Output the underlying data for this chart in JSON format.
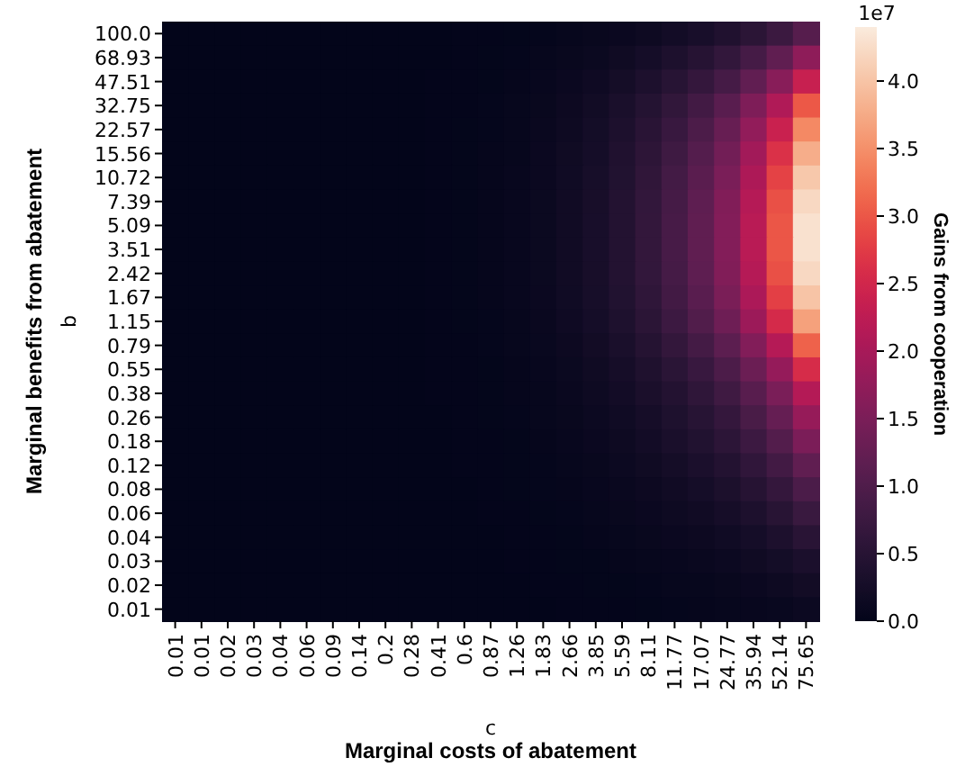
{
  "chart_data": {
    "type": "heatmap",
    "xlabel": "c",
    "ylabel": "b",
    "clabel": "Gains from cooperation",
    "annotations": [
      "Marginal costs of abatement",
      "Marginal benefits from abatement",
      "1e7"
    ],
    "categories": [
      "0.01",
      "0.01",
      "0.02",
      "0.03",
      "0.04",
      "0.06",
      "0.09",
      "0.14",
      "0.2",
      "0.28",
      "0.41",
      "0.6",
      "0.87",
      "1.26",
      "1.83",
      "2.66",
      "3.85",
      "5.59",
      "8.11",
      "11.77",
      "17.07",
      "24.77",
      "35.94",
      "52.14",
      "75.65"
    ],
    "y_categories": [
      "100.0",
      "68.93",
      "47.51",
      "32.75",
      "22.57",
      "15.56",
      "10.72",
      "7.39",
      "5.09",
      "3.51",
      "2.42",
      "1.67",
      "1.15",
      "0.79",
      "0.55",
      "0.38",
      "0.26",
      "0.18",
      "0.12",
      "0.08",
      "0.06",
      "0.04",
      "0.03",
      "0.02",
      "0.01"
    ],
    "clim": [
      0,
      4.4
    ],
    "cticks": [
      {
        "value": 0,
        "label": "0.0"
      },
      0.5,
      {
        "value": 1,
        "label": "1.0"
      },
      1.5,
      {
        "value": 2,
        "label": "2.0"
      },
      2.5,
      {
        "value": 3,
        "label": "3.0"
      },
      3.5,
      {
        "value": 4,
        "label": "4.0"
      }
    ],
    "cells": [
      [
        0,
        0,
        0,
        0,
        0,
        0,
        0,
        0,
        0,
        0,
        0,
        0.01,
        0.01,
        0.02,
        0.03,
        0.05,
        0.08,
        0.11,
        0.16,
        0.23,
        0.3,
        0.4,
        0.55,
        0.75,
        1.08
      ],
      [
        0,
        0,
        0,
        0,
        0,
        0,
        0,
        0,
        0,
        0,
        0,
        0.01,
        0.02,
        0.03,
        0.05,
        0.08,
        0.12,
        0.18,
        0.26,
        0.36,
        0.48,
        0.64,
        0.88,
        1.2,
        1.72
      ],
      [
        0,
        0,
        0,
        0,
        0,
        0,
        0,
        0,
        0,
        0,
        0.01,
        0.01,
        0.02,
        0.04,
        0.07,
        0.11,
        0.17,
        0.25,
        0.36,
        0.5,
        0.66,
        0.88,
        1.21,
        1.65,
        2.37
      ],
      [
        0,
        0,
        0,
        0,
        0,
        0,
        0,
        0,
        0,
        0,
        0.01,
        0.01,
        0.03,
        0.05,
        0.08,
        0.14,
        0.21,
        0.32,
        0.46,
        0.63,
        0.84,
        1.12,
        1.54,
        2.1,
        3.01
      ],
      [
        0,
        0,
        0,
        0,
        0,
        0,
        0,
        0,
        0,
        0,
        0.01,
        0.02,
        0.03,
        0.06,
        0.1,
        0.16,
        0.24,
        0.36,
        0.52,
        0.72,
        0.96,
        1.28,
        1.76,
        2.4,
        3.44
      ],
      [
        0,
        0,
        0,
        0,
        0,
        0,
        0,
        0,
        0,
        0,
        0.01,
        0.02,
        0.04,
        0.06,
        0.11,
        0.18,
        0.26,
        0.4,
        0.57,
        0.79,
        1.06,
        1.41,
        1.94,
        2.64,
        3.78
      ],
      [
        0,
        0,
        0,
        0,
        0,
        0,
        0,
        0,
        0,
        0,
        0.01,
        0.02,
        0.04,
        0.07,
        0.11,
        0.19,
        0.28,
        0.42,
        0.61,
        0.85,
        1.13,
        1.5,
        2.07,
        2.82,
        4.04
      ],
      [
        0,
        0,
        0,
        0,
        0,
        0,
        0,
        0,
        0,
        0,
        0.01,
        0.02,
        0.04,
        0.07,
        0.12,
        0.2,
        0.29,
        0.44,
        0.64,
        0.88,
        1.18,
        1.57,
        2.16,
        2.94,
        4.21
      ],
      [
        0,
        0,
        0,
        0,
        0,
        0,
        0,
        0,
        0,
        0,
        0.01,
        0.02,
        0.04,
        0.07,
        0.12,
        0.2,
        0.3,
        0.45,
        0.65,
        0.9,
        1.2,
        1.6,
        2.2,
        3.0,
        4.3
      ],
      [
        0,
        0,
        0,
        0,
        0,
        0,
        0,
        0,
        0,
        0,
        0.01,
        0.02,
        0.04,
        0.07,
        0.12,
        0.2,
        0.3,
        0.45,
        0.65,
        0.9,
        1.2,
        1.6,
        2.2,
        3.0,
        4.3
      ],
      [
        0,
        0,
        0,
        0,
        0,
        0,
        0,
        0,
        0,
        0,
        0.01,
        0.02,
        0.04,
        0.07,
        0.12,
        0.2,
        0.29,
        0.44,
        0.64,
        0.88,
        1.18,
        1.57,
        2.16,
        2.94,
        4.21
      ],
      [
        0,
        0,
        0,
        0,
        0,
        0,
        0,
        0,
        0,
        0,
        0.01,
        0.02,
        0.04,
        0.07,
        0.11,
        0.19,
        0.28,
        0.42,
        0.6,
        0.84,
        1.12,
        1.49,
        2.05,
        2.79,
        4.0
      ],
      [
        0,
        0,
        0,
        0,
        0,
        0,
        0,
        0,
        0,
        0,
        0.01,
        0.02,
        0.03,
        0.06,
        0.1,
        0.17,
        0.26,
        0.38,
        0.55,
        0.77,
        1.02,
        1.36,
        1.87,
        2.55,
        3.66
      ],
      [
        0,
        0,
        0,
        0,
        0,
        0,
        0,
        0,
        0,
        0,
        0.01,
        0.01,
        0.03,
        0.05,
        0.09,
        0.14,
        0.22,
        0.32,
        0.47,
        0.65,
        0.86,
        1.15,
        1.58,
        2.16,
        3.1
      ],
      [
        0,
        0,
        0,
        0,
        0,
        0,
        0,
        0,
        0,
        0,
        0.01,
        0.01,
        0.02,
        0.04,
        0.07,
        0.12,
        0.18,
        0.27,
        0.39,
        0.54,
        0.72,
        0.96,
        1.32,
        1.8,
        2.58
      ],
      [
        0,
        0,
        0,
        0,
        0,
        0,
        0,
        0,
        0,
        0,
        0.01,
        0.01,
        0.02,
        0.04,
        0.06,
        0.1,
        0.15,
        0.23,
        0.33,
        0.45,
        0.6,
        0.8,
        1.1,
        1.5,
        2.15
      ],
      [
        0,
        0,
        0,
        0,
        0,
        0,
        0,
        0,
        0,
        0,
        0,
        0.01,
        0.02,
        0.03,
        0.05,
        0.08,
        0.13,
        0.19,
        0.27,
        0.38,
        0.5,
        0.67,
        0.92,
        1.26,
        1.81
      ],
      [
        0,
        0,
        0,
        0,
        0,
        0,
        0,
        0,
        0,
        0,
        0,
        0.01,
        0.01,
        0.02,
        0.04,
        0.07,
        0.11,
        0.16,
        0.23,
        0.32,
        0.42,
        0.56,
        0.77,
        1.05,
        1.51
      ],
      [
        0,
        0,
        0,
        0,
        0,
        0,
        0,
        0,
        0,
        0,
        0,
        0.01,
        0.01,
        0.02,
        0.03,
        0.06,
        0.08,
        0.13,
        0.18,
        0.25,
        0.34,
        0.45,
        0.62,
        0.84,
        1.2
      ],
      [
        0,
        0,
        0,
        0,
        0,
        0,
        0,
        0,
        0,
        0,
        0,
        0,
        0.01,
        0.02,
        0.03,
        0.04,
        0.07,
        0.1,
        0.14,
        0.2,
        0.26,
        0.35,
        0.48,
        0.66,
        0.95
      ],
      [
        0,
        0,
        0,
        0,
        0,
        0,
        0,
        0,
        0,
        0,
        0,
        0,
        0.01,
        0.01,
        0.02,
        0.03,
        0.05,
        0.08,
        0.11,
        0.15,
        0.2,
        0.27,
        0.37,
        0.51,
        0.73
      ],
      [
        0,
        0,
        0,
        0,
        0,
        0,
        0,
        0,
        0,
        0,
        0,
        0,
        0,
        0.01,
        0.01,
        0.02,
        0.04,
        0.05,
        0.08,
        0.11,
        0.14,
        0.19,
        0.26,
        0.36,
        0.52
      ],
      [
        0,
        0,
        0,
        0,
        0,
        0,
        0,
        0,
        0,
        0,
        0,
        0,
        0,
        0.01,
        0.01,
        0.02,
        0.02,
        0.04,
        0.05,
        0.07,
        0.1,
        0.13,
        0.18,
        0.24,
        0.34
      ],
      [
        0,
        0,
        0,
        0,
        0,
        0,
        0,
        0,
        0,
        0,
        0,
        0,
        0,
        0,
        0.01,
        0.01,
        0.02,
        0.02,
        0.03,
        0.05,
        0.06,
        0.08,
        0.11,
        0.15,
        0.22
      ],
      [
        0,
        0,
        0,
        0,
        0,
        0,
        0,
        0,
        0,
        0,
        0,
        0,
        0,
        0,
        0,
        0.01,
        0.01,
        0.01,
        0.02,
        0.03,
        0.04,
        0.05,
        0.07,
        0.09,
        0.13
      ]
    ]
  }
}
